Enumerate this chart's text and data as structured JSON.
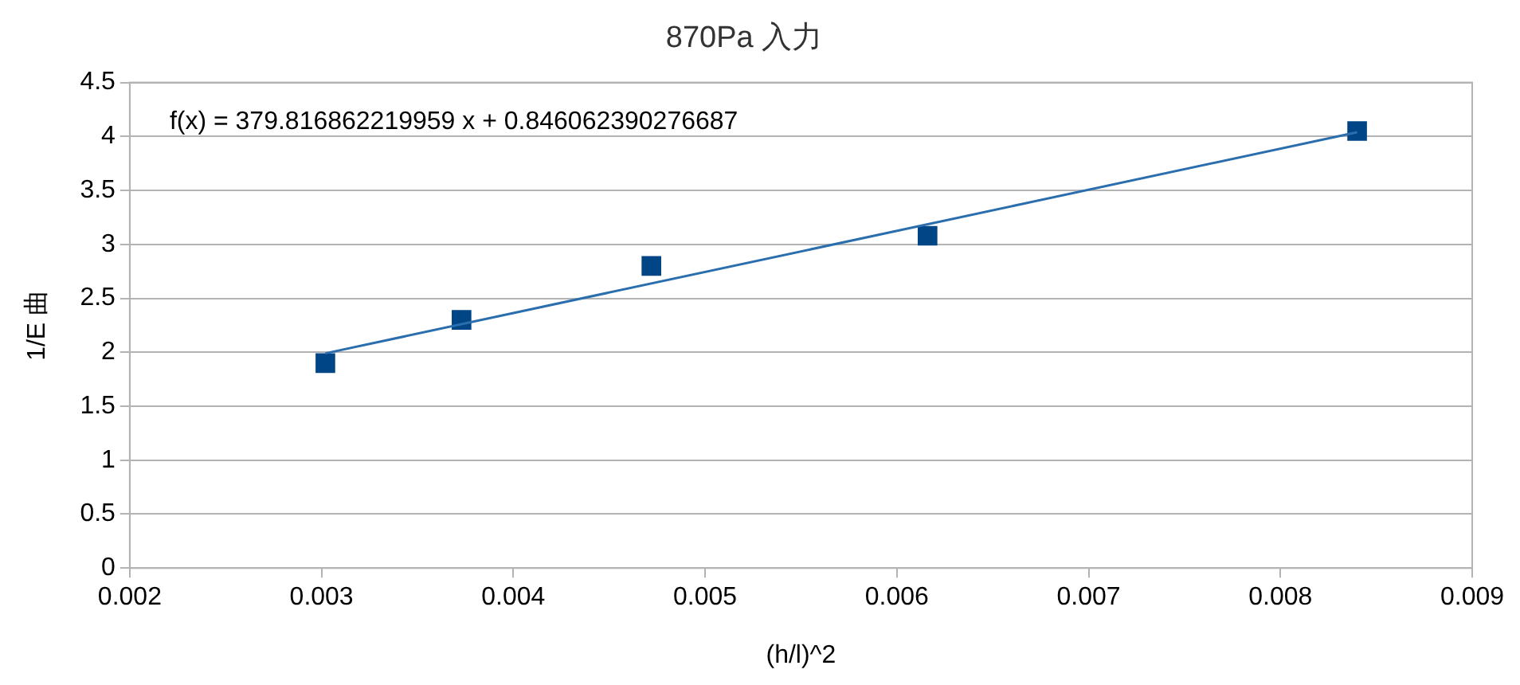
{
  "chart_data": {
    "type": "scatter",
    "title": "870Pa 入力",
    "xlabel": "(h/l)^2",
    "ylabel": "1/E 曲",
    "xlim": [
      0.002,
      0.009
    ],
    "xticks": [
      0.002,
      0.003,
      0.004,
      0.005,
      0.006,
      0.007,
      0.008,
      0.009
    ],
    "ylim": [
      0,
      4.5
    ],
    "yticks": [
      0,
      0.5,
      1,
      1.5,
      2,
      2.5,
      3,
      3.5,
      4,
      4.5
    ],
    "grid": "y",
    "legend": false,
    "annotations": [
      "f(x) = 379.816862219959 x + 0.846062390276687"
    ],
    "series": [
      {
        "type": "scatter",
        "marker": "square",
        "color": "#004586",
        "x": [
          0.00302,
          0.00373,
          0.00472,
          0.00616,
          0.0084
        ],
        "values": [
          1.9,
          2.3,
          2.8,
          3.08,
          4.05
        ]
      },
      {
        "type": "line",
        "marker": "none",
        "color": "#2a6ead",
        "x": [
          0.00302,
          0.0084
        ],
        "values": [
          1.99,
          4.04
        ]
      }
    ]
  }
}
